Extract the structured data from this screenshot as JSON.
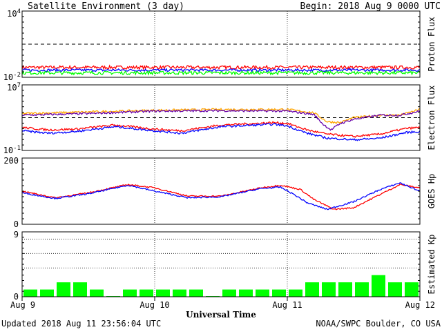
{
  "header": {
    "title": "Satellite Environment (3 day)",
    "begin": "Begin:  2018 Aug 9 0000 UTC"
  },
  "footer": {
    "updated": "Updated 2018 Aug 11 23:56:04 UTC",
    "credit": "NOAA/SWPC Boulder, CO USA"
  },
  "xaxis": {
    "label": "Universal Time",
    "ticks": [
      "Aug 9",
      "Aug 10",
      "Aug 11",
      "Aug 12"
    ],
    "range_days": [
      0,
      3
    ]
  },
  "colors": {
    "red": "#ff0000",
    "blue": "#0000ff",
    "green": "#00ff00",
    "orange": "#ffa500",
    "purple": "#6600aa"
  },
  "chart_data": [
    {
      "type": "line",
      "name": "proton",
      "ylabel": "Proton Flux",
      "scale": "log",
      "ylim_exp": [
        -2,
        4
      ],
      "tick_labels": [
        {
          "base": "10",
          "exp": "4"
        },
        {
          "base": "10",
          "exp": "-2"
        }
      ],
      "threshold_exp": 1,
      "series": [
        {
          "color": "red",
          "level_exp": -1.1,
          "noise": 0.15
        },
        {
          "color": "blue",
          "level_exp": -1.35,
          "noise": 0.12
        },
        {
          "color": "green",
          "level_exp": -1.6,
          "noise": 0.15
        }
      ]
    },
    {
      "type": "line",
      "name": "electron",
      "ylabel": "Electron Flux",
      "scale": "log",
      "ylim_exp": [
        -1,
        7
      ],
      "tick_labels": [
        {
          "base": "10",
          "exp": "7"
        },
        {
          "base": "10",
          "exp": "-1"
        }
      ],
      "threshold_exp": 3,
      "series": [
        {
          "color": "orange",
          "points": [
            [
              0,
              3.5
            ],
            [
              0.5,
              3.7
            ],
            [
              1,
              3.9
            ],
            [
              1.5,
              4.0
            ],
            [
              2,
              4.0
            ],
            [
              2.2,
              3.6
            ],
            [
              2.3,
              2.5
            ],
            [
              2.4,
              2.4
            ],
            [
              2.5,
              3.0
            ],
            [
              2.7,
              3.3
            ],
            [
              2.85,
              3.3
            ],
            [
              3,
              4.0
            ]
          ]
        },
        {
          "color": "purple",
          "points": [
            [
              0,
              3.3
            ],
            [
              0.5,
              3.5
            ],
            [
              1,
              3.8
            ],
            [
              1.5,
              3.85
            ],
            [
              2,
              3.8
            ],
            [
              2.2,
              3.4
            ],
            [
              2.27,
              2.2
            ],
            [
              2.33,
              1.5
            ],
            [
              2.4,
              2.3
            ],
            [
              2.5,
              2.8
            ],
            [
              2.7,
              3.3
            ],
            [
              2.85,
              3.3
            ],
            [
              3,
              3.8
            ]
          ]
        },
        {
          "color": "red",
          "points": [
            [
              0,
              1.8
            ],
            [
              0.2,
              1.5
            ],
            [
              0.4,
              1.6
            ],
            [
              0.7,
              2.1
            ],
            [
              1,
              1.6
            ],
            [
              1.2,
              1.4
            ],
            [
              1.5,
              2.1
            ],
            [
              1.9,
              2.4
            ],
            [
              2,
              2.3
            ],
            [
              2.15,
              1.5
            ],
            [
              2.3,
              1.0
            ],
            [
              2.5,
              0.7
            ],
            [
              2.7,
              1.0
            ],
            [
              2.9,
              1.7
            ],
            [
              3,
              1.8
            ]
          ]
        },
        {
          "color": "blue",
          "points": [
            [
              0,
              1.4
            ],
            [
              0.2,
              1.1
            ],
            [
              0.4,
              1.3
            ],
            [
              0.7,
              1.9
            ],
            [
              1,
              1.4
            ],
            [
              1.2,
              1.1
            ],
            [
              1.5,
              1.9
            ],
            [
              1.9,
              2.2
            ],
            [
              2,
              2.0
            ],
            [
              2.15,
              1.1
            ],
            [
              2.3,
              0.5
            ],
            [
              2.5,
              0.3
            ],
            [
              2.7,
              0.5
            ],
            [
              2.9,
              1.2
            ],
            [
              3,
              1.3
            ]
          ]
        }
      ]
    },
    {
      "type": "line",
      "name": "goes_hp",
      "ylabel": "GOES Hp",
      "scale": "linear",
      "ylim": [
        0,
        200
      ],
      "ticks": [
        200,
        0
      ],
      "series": [
        {
          "color": "red",
          "points": [
            [
              0,
              100
            ],
            [
              0.25,
              80
            ],
            [
              0.5,
              95
            ],
            [
              0.8,
              120
            ],
            [
              1,
              110
            ],
            [
              1.25,
              85
            ],
            [
              1.5,
              85
            ],
            [
              1.8,
              110
            ],
            [
              1.95,
              118
            ],
            [
              2.1,
              105
            ],
            [
              2.2,
              75
            ],
            [
              2.35,
              45
            ],
            [
              2.5,
              50
            ],
            [
              2.65,
              80
            ],
            [
              2.85,
              120
            ],
            [
              3,
              110
            ]
          ]
        },
        {
          "color": "blue",
          "points": [
            [
              0,
              95
            ],
            [
              0.25,
              78
            ],
            [
              0.5,
              92
            ],
            [
              0.8,
              118
            ],
            [
              1,
              100
            ],
            [
              1.25,
              80
            ],
            [
              1.5,
              83
            ],
            [
              1.8,
              108
            ],
            [
              1.95,
              112
            ],
            [
              2.05,
              90
            ],
            [
              2.15,
              65
            ],
            [
              2.3,
              45
            ],
            [
              2.5,
              68
            ],
            [
              2.7,
              105
            ],
            [
              2.85,
              125
            ],
            [
              3,
              100
            ]
          ]
        }
      ]
    },
    {
      "type": "bar",
      "name": "kp",
      "ylabel": "Estimated Kp",
      "ylim": [
        0,
        9
      ],
      "ticks": [
        9,
        0
      ],
      "dotted_levels": [
        8,
        6,
        4
      ],
      "color": "green",
      "values": [
        1,
        1,
        2,
        2,
        1,
        0,
        1,
        1,
        1,
        1,
        1,
        0,
        1,
        1,
        1,
        1,
        1,
        2,
        2,
        2,
        2,
        3,
        2,
        2
      ]
    }
  ]
}
